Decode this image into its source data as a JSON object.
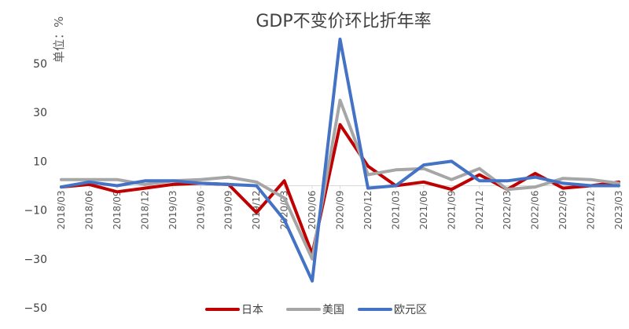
{
  "chart_data": {
    "type": "line",
    "title": "GDP不变价环比折年率",
    "unit_label": "单位：%",
    "xlabel": "",
    "ylabel": "",
    "ylim": [
      -50,
      60
    ],
    "yticks": [
      50,
      30,
      10,
      -10,
      -30,
      -50
    ],
    "grid": false,
    "legend_position": "bottom",
    "categories": [
      "2018/03",
      "2018/06",
      "2018/09",
      "2018/12",
      "2019/03",
      "2019/06",
      "2019/09",
      "2019/12",
      "2020/03",
      "2020/06",
      "2020/09",
      "2020/12",
      "2021/03",
      "2021/06",
      "2021/09",
      "2021/12",
      "2022/03",
      "2022/06",
      "2022/09",
      "2022/12",
      "2023/03"
    ],
    "series": [
      {
        "name": "日本",
        "color": "#C00000",
        "values": [
          -0.5,
          0.5,
          -2.5,
          -1,
          0.5,
          1,
          0.5,
          -11,
          2,
          -28,
          25,
          8,
          0,
          1.5,
          -1.5,
          4.5,
          -1.5,
          5,
          -1,
          0,
          1.5
        ]
      },
      {
        "name": "美国",
        "color": "#A6A6A6",
        "values": [
          2.5,
          2.5,
          2.5,
          0.5,
          2,
          2.5,
          3.5,
          1.5,
          -5,
          -30,
          35,
          4.5,
          6.5,
          7,
          2.5,
          7,
          -1.5,
          -0.5,
          3,
          2.5,
          1
        ]
      },
      {
        "name": "欧元区",
        "color": "#4472C4",
        "values": [
          -0.5,
          1.5,
          0,
          2,
          2,
          1,
          0.5,
          0,
          -14,
          -39,
          60,
          -1,
          0,
          8.5,
          10,
          2,
          2,
          3.5,
          1,
          0,
          0
        ]
      }
    ]
  }
}
